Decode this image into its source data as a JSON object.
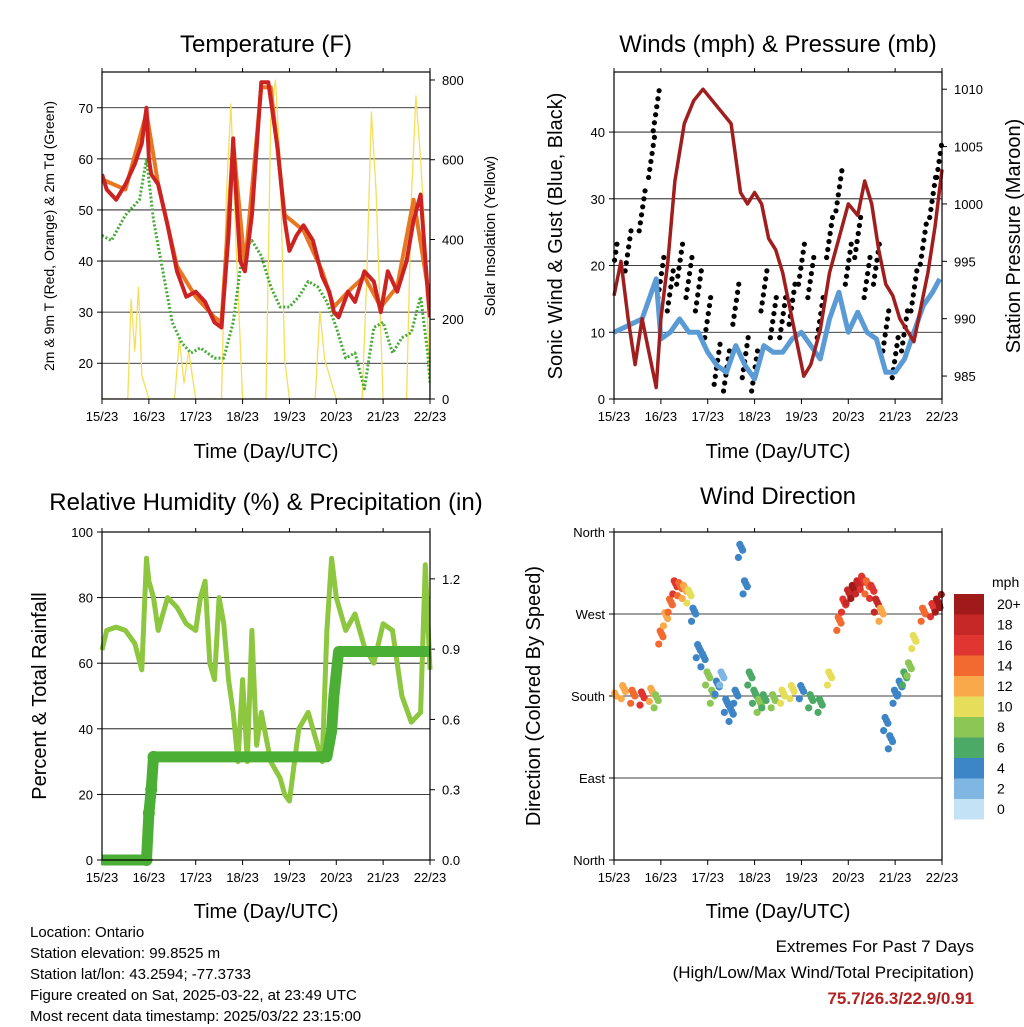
{
  "panels": {
    "temp": {
      "title": "Temperature (F)",
      "xlabel": "Time (Day/UTC)",
      "ylabel_left": "2m & 9m T (Red, Orange) & 2m Td (Green)",
      "ylabel_right": "Solar Insolation (Yellow)"
    },
    "wind": {
      "title": "Winds (mph) & Pressure (mb)",
      "xlabel": "Time (Day/UTC)",
      "ylabel_left": "Sonic Wind & Gust (Blue, Black)",
      "ylabel_right": "Station Pressure (Maroon)"
    },
    "rh": {
      "title": "Relative Humidity (%) & Precipitation (in)",
      "xlabel": "Time (Day/UTC)",
      "ylabel_left": "Percent & Total Rainfall"
    },
    "dir": {
      "title": "Wind Direction",
      "xlabel": "Time (Day/UTC)",
      "ylabel_left": "Direction (Colored By Speed)",
      "legend_title": "mph"
    }
  },
  "footer": {
    "location": "Location: Ontario",
    "elevation": "Station elevation: 99.8525 m",
    "latlon": "Station lat/lon: 43.2594; -77.3733",
    "created": "Figure created on Sat, 2025-03-22, at 23:49 UTC",
    "recent": "Most recent data timestamp: 2025/03/22 23:15:00"
  },
  "extremes": {
    "line1": "Extremes For Past 7 Days",
    "line2": "(High/Low/Max Wind/Total Precipitation)",
    "values": "75.7/26.3/22.9/0.91",
    "value_color": "#b22222"
  },
  "chart_data": [
    {
      "id": "temp",
      "type": "line",
      "x_ticks": [
        "15/23",
        "16/23",
        "17/23",
        "18/23",
        "19/23",
        "20/23",
        "21/23",
        "22/23"
      ],
      "x_range_days": [
        0,
        7
      ],
      "ylim_left": [
        13,
        77
      ],
      "y_ticks_left": [
        20,
        30,
        40,
        50,
        60,
        70
      ],
      "ylim_right": [
        0,
        820
      ],
      "y_ticks_right": [
        0,
        200,
        400,
        600,
        800
      ],
      "grid": true,
      "series": [
        {
          "color": "#cc2222",
          "axis": "left",
          "x": [
            0,
            0.1,
            0.3,
            0.5,
            0.7,
            0.85,
            0.95,
            1.0,
            1.05,
            1.2,
            1.4,
            1.6,
            1.8,
            2.0,
            2.2,
            2.4,
            2.55,
            2.7,
            2.8,
            2.85,
            2.95,
            3.05,
            3.2,
            3.4,
            3.55,
            3.75,
            3.9,
            4.0,
            4.15,
            4.3,
            4.5,
            4.7,
            4.85,
            4.95,
            5.05,
            5.25,
            5.4,
            5.6,
            5.8,
            5.95,
            6.1,
            6.3,
            6.5,
            6.65,
            6.8,
            6.95,
            7.0
          ],
          "y": [
            57,
            54,
            52,
            55,
            59,
            63,
            70,
            60,
            57,
            55,
            47,
            38,
            33,
            34,
            32,
            28,
            27,
            45,
            64,
            55,
            40,
            38,
            49,
            75,
            75,
            62,
            48,
            42,
            45,
            47,
            44,
            37,
            34,
            30,
            29,
            34,
            32,
            38,
            36,
            30,
            38,
            34,
            40,
            48,
            53,
            34,
            29
          ]
        },
        {
          "color": "#e87722",
          "axis": "left",
          "x": [
            0,
            0.5,
            0.95,
            1.2,
            1.6,
            2.0,
            2.4,
            2.55,
            2.8,
            3.05,
            3.4,
            3.6,
            3.9,
            4.3,
            4.7,
            4.95,
            5.25,
            5.6,
            5.95,
            6.3,
            6.65,
            6.95,
            7.0
          ],
          "y": [
            56,
            54,
            69,
            55,
            39,
            33,
            29,
            28,
            63,
            39,
            74,
            74,
            49,
            46,
            38,
            31,
            34,
            37,
            31,
            35,
            52,
            35,
            30
          ]
        },
        {
          "color": "#44aa33",
          "axis": "left",
          "x": [
            0,
            0.2,
            0.5,
            0.8,
            0.95,
            1.1,
            1.3,
            1.5,
            1.7,
            1.9,
            2.1,
            2.4,
            2.6,
            2.8,
            3.0,
            3.2,
            3.4,
            3.6,
            3.8,
            4.0,
            4.2,
            4.4,
            4.6,
            4.8,
            5.0,
            5.2,
            5.4,
            5.6,
            5.8,
            6.0,
            6.2,
            6.4,
            6.6,
            6.8,
            6.95,
            7.0
          ],
          "y": [
            45,
            44,
            49,
            52,
            60,
            48,
            38,
            28,
            24,
            22,
            23,
            21,
            21,
            28,
            42,
            44,
            41,
            35,
            31,
            31,
            33,
            36,
            35,
            32,
            27,
            21,
            22,
            15,
            27,
            28,
            22,
            25,
            26,
            33,
            22,
            16
          ]
        },
        {
          "color": "#f7de5a",
          "axis": "right",
          "thin": true,
          "x": [
            0,
            0.55,
            0.62,
            0.7,
            0.78,
            0.85,
            1.0,
            1.55,
            1.65,
            1.75,
            1.85,
            2.0,
            2.55,
            2.65,
            2.75,
            2.85,
            3.0,
            3.5,
            3.6,
            3.7,
            3.8,
            3.9,
            4.0,
            4.55,
            4.65,
            4.75,
            4.85,
            5.0,
            5.55,
            5.65,
            5.75,
            5.85,
            6.0,
            6.5,
            6.6,
            6.7,
            6.8,
            6.9,
            7.0
          ],
          "y": [
            0,
            0,
            250,
            120,
            280,
            60,
            0,
            0,
            150,
            40,
            120,
            0,
            0,
            500,
            740,
            420,
            0,
            0,
            700,
            800,
            600,
            100,
            0,
            0,
            220,
            100,
            60,
            0,
            0,
            300,
            720,
            520,
            0,
            0,
            500,
            760,
            600,
            400,
            0
          ]
        }
      ]
    },
    {
      "id": "wind",
      "type": "scatter",
      "x_ticks": [
        "15/23",
        "16/23",
        "17/23",
        "18/23",
        "19/23",
        "20/23",
        "21/23",
        "22/23"
      ],
      "x_range_days": [
        0,
        7
      ],
      "ylim_left": [
        0,
        49
      ],
      "y_ticks_left": [
        0,
        10,
        20,
        30,
        40
      ],
      "ylim_right": [
        983,
        1011.5
      ],
      "y_ticks_right": [
        985,
        990,
        995,
        1000,
        1005,
        1010
      ],
      "grid": true,
      "series": [
        {
          "name": "gust",
          "color": "#000000",
          "axis": "left",
          "x": [
            0,
            0.3,
            0.6,
            0.8,
            0.9,
            1.0,
            1.2,
            1.4,
            1.6,
            1.8,
            2.0,
            2.2,
            2.4,
            2.6,
            2.8,
            3.0,
            3.2,
            3.4,
            3.6,
            3.8,
            4.0,
            4.2,
            4.4,
            4.6,
            4.8,
            5.0,
            5.2,
            5.4,
            5.6,
            5.8,
            6.0,
            6.2,
            6.4,
            6.6,
            6.8,
            6.95
          ],
          "y": [
            22,
            24,
            30,
            38,
            45,
            20,
            18,
            22,
            20,
            18,
            14,
            7,
            6,
            16,
            8,
            6,
            18,
            14,
            14,
            16,
            22,
            20,
            14,
            26,
            33,
            22,
            26,
            20,
            22,
            12,
            8,
            12,
            18,
            25,
            32,
            38
          ]
        },
        {
          "name": "wind",
          "color": "#5b9bd5",
          "axis": "left",
          "x": [
            0,
            0.3,
            0.6,
            0.8,
            0.9,
            1.0,
            1.2,
            1.4,
            1.6,
            1.8,
            2.0,
            2.2,
            2.4,
            2.6,
            2.8,
            3.0,
            3.2,
            3.4,
            3.6,
            3.8,
            4.0,
            4.2,
            4.4,
            4.6,
            4.8,
            5.0,
            5.2,
            5.4,
            5.6,
            5.8,
            6.0,
            6.2,
            6.4,
            6.6,
            6.8,
            6.95
          ],
          "y": [
            10,
            11,
            12,
            16,
            18,
            9,
            10,
            12,
            10,
            10,
            7,
            5,
            4,
            8,
            5,
            3,
            8,
            7,
            7,
            9,
            10,
            8,
            6,
            12,
            16,
            10,
            13,
            10,
            9,
            4,
            4,
            6,
            10,
            14,
            16,
            18
          ]
        },
        {
          "name": "pressure",
          "color": "#a01e1e",
          "axis": "right",
          "line": true,
          "x": [
            0,
            0.15,
            0.3,
            0.45,
            0.6,
            0.75,
            0.9,
            1.0,
            1.15,
            1.3,
            1.5,
            1.7,
            1.9,
            2.1,
            2.3,
            2.5,
            2.7,
            2.85,
            3.0,
            3.15,
            3.3,
            3.45,
            3.6,
            3.75,
            3.9,
            4.05,
            4.2,
            4.4,
            4.6,
            4.8,
            5.0,
            5.2,
            5.35,
            5.5,
            5.65,
            5.8,
            5.95,
            6.1,
            6.25,
            6.4,
            6.55,
            6.7,
            6.85,
            7.0
          ],
          "y": [
            992,
            995,
            990,
            986,
            990,
            987,
            984,
            990,
            995,
            1002,
            1007,
            1009,
            1010,
            1009,
            1008,
            1007,
            1001,
            1000,
            1001,
            1000,
            997,
            996,
            994,
            991,
            988,
            985,
            986,
            989,
            994,
            997,
            1000,
            999,
            1002,
            1000,
            996,
            993,
            992,
            990,
            989,
            988,
            991,
            994,
            998,
            1003
          ]
        }
      ]
    },
    {
      "id": "rh",
      "type": "line",
      "x_ticks": [
        "15/23",
        "16/23",
        "17/23",
        "18/23",
        "19/23",
        "20/23",
        "21/23",
        "22/23"
      ],
      "x_range_days": [
        0,
        7
      ],
      "ylim_left": [
        0,
        100
      ],
      "y_ticks_left": [
        0,
        20,
        40,
        60,
        80,
        100
      ],
      "ylim_right": [
        0,
        1.4
      ],
      "y_ticks_right": [
        "0.0",
        "0.3",
        "0.6",
        "0.9",
        "1.2"
      ],
      "grid": true,
      "series": [
        {
          "name": "rh",
          "color": "#8dc63f",
          "axis": "left",
          "x": [
            0,
            0.1,
            0.3,
            0.5,
            0.7,
            0.85,
            0.95,
            1.0,
            1.1,
            1.2,
            1.4,
            1.6,
            1.8,
            2.0,
            2.1,
            2.2,
            2.3,
            2.4,
            2.5,
            2.6,
            2.7,
            2.8,
            2.9,
            3.0,
            3.1,
            3.2,
            3.3,
            3.4,
            3.6,
            3.8,
            3.9,
            4.0,
            4.2,
            4.4,
            4.6,
            4.7,
            4.8,
            4.9,
            5.0,
            5.2,
            5.4,
            5.6,
            5.8,
            6.0,
            6.2,
            6.4,
            6.6,
            6.8,
            6.9,
            7.0
          ],
          "y": [
            64,
            70,
            71,
            70,
            66,
            58,
            92,
            85,
            80,
            70,
            80,
            77,
            72,
            70,
            80,
            85,
            60,
            55,
            80,
            72,
            55,
            45,
            30,
            55,
            30,
            70,
            35,
            45,
            30,
            25,
            20,
            18,
            40,
            45,
            35,
            30,
            70,
            92,
            80,
            70,
            75,
            65,
            60,
            72,
            70,
            50,
            42,
            45,
            90,
            58
          ]
        },
        {
          "name": "precip",
          "color": "#4caf35",
          "axis": "right",
          "thick": true,
          "x": [
            0,
            0.95,
            1.0,
            1.05,
            1.1,
            4.8,
            4.9,
            4.95,
            5.05,
            7.0
          ],
          "y": [
            0,
            0,
            0.2,
            0.3,
            0.44,
            0.44,
            0.55,
            0.7,
            0.89,
            0.89
          ]
        }
      ]
    },
    {
      "id": "dir",
      "type": "scatter",
      "x_ticks": [
        "15/23",
        "16/23",
        "17/23",
        "18/23",
        "19/23",
        "20/23",
        "21/23",
        "22/23"
      ],
      "x_range_days": [
        0,
        7
      ],
      "y_ticks": [
        "North",
        "East",
        "South",
        "West",
        "North"
      ],
      "ylim": [
        0,
        360
      ],
      "grid": true,
      "legend": {
        "placement": "right",
        "labels": [
          "20+",
          "18",
          "16",
          "14",
          "12",
          "10",
          "8",
          "6",
          "4",
          "2",
          "0"
        ],
        "colors": [
          "#a11a1a",
          "#c62828",
          "#e03530",
          "#f26a30",
          "#f9a94a",
          "#e6de5a",
          "#8cc655",
          "#4daa66",
          "#3d85c6",
          "#7fb6e2",
          "#c3e2f5"
        ]
      },
      "points": {
        "x": [
          0,
          0.2,
          0.4,
          0.6,
          0.8,
          0.9,
          1.0,
          1.1,
          1.2,
          1.3,
          1.4,
          1.5,
          1.6,
          1.7,
          1.8,
          1.9,
          2.0,
          2.1,
          2.2,
          2.3,
          2.4,
          2.5,
          2.6,
          2.7,
          2.8,
          2.9,
          3.0,
          3.1,
          3.2,
          3.4,
          3.6,
          3.8,
          4.0,
          4.2,
          4.4,
          4.6,
          4.8,
          4.9,
          5.0,
          5.1,
          5.2,
          5.3,
          5.4,
          5.5,
          5.6,
          5.7,
          5.8,
          5.9,
          6.0,
          6.1,
          6.2,
          6.3,
          6.4,
          6.6,
          6.8,
          6.9,
          7.0
        ],
        "y": [
          180,
          185,
          180,
          178,
          182,
          175,
          245,
          265,
          280,
          300,
          298,
          295,
          290,
          270,
          230,
          220,
          200,
          180,
          190,
          200,
          170,
          160,
          180,
          340,
          300,
          200,
          180,
          170,
          175,
          175,
          180,
          185,
          185,
          175,
          170,
          200,
          260,
          280,
          290,
          295,
          300,
          305,
          300,
          295,
          280,
          270,
          150,
          130,
          180,
          190,
          200,
          210,
          240,
          270,
          275,
          280,
          285
        ],
        "speed": [
          12,
          11,
          13,
          16,
          12,
          8,
          14,
          12,
          13,
          15,
          14,
          12,
          10,
          4,
          4,
          4,
          8,
          8,
          4,
          2,
          4,
          4,
          4,
          4,
          4,
          6,
          6,
          8,
          6,
          8,
          10,
          10,
          4,
          6,
          6,
          10,
          14,
          16,
          18,
          20,
          18,
          16,
          14,
          16,
          18,
          12,
          4,
          4,
          4,
          4,
          6,
          8,
          10,
          14,
          16,
          20,
          20
        ]
      }
    }
  ]
}
